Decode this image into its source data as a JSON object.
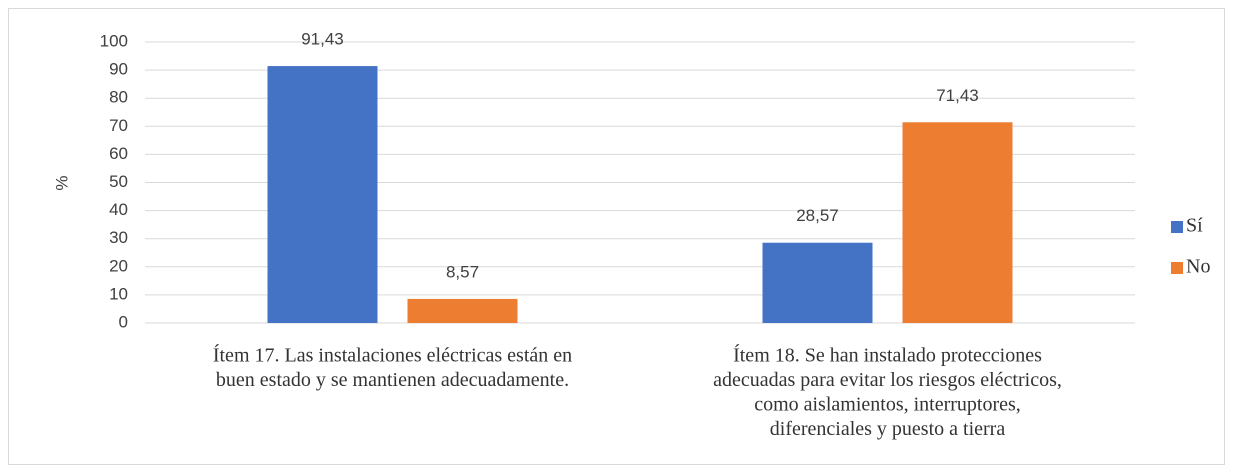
{
  "chart_data": {
    "type": "bar",
    "y_label": "%",
    "categories": [
      [
        "Ítem 17. Las instalaciones eléctricas están en",
        "buen estado y se mantienen adecuadamente."
      ],
      [
        "Ítem 18. Se han instalado protecciones",
        "adecuadas para evitar los riesgos eléctricos,",
        "como aislamientos, interruptores,",
        "diferenciales y puesto a tierra"
      ]
    ],
    "series": [
      {
        "name": "Sí",
        "color": "#4472c4",
        "values": [
          91.43,
          28.57
        ],
        "value_labels": [
          "91,43",
          "28,57"
        ]
      },
      {
        "name": "No",
        "color": "#ed7d31",
        "values": [
          8.57,
          71.43
        ],
        "value_labels": [
          "8,57",
          "71,43"
        ]
      }
    ],
    "ylim": [
      0,
      100
    ],
    "yticks": [
      0,
      10,
      20,
      30,
      40,
      50,
      60,
      70,
      80,
      90,
      100
    ],
    "grid": true,
    "legend": "right"
  }
}
